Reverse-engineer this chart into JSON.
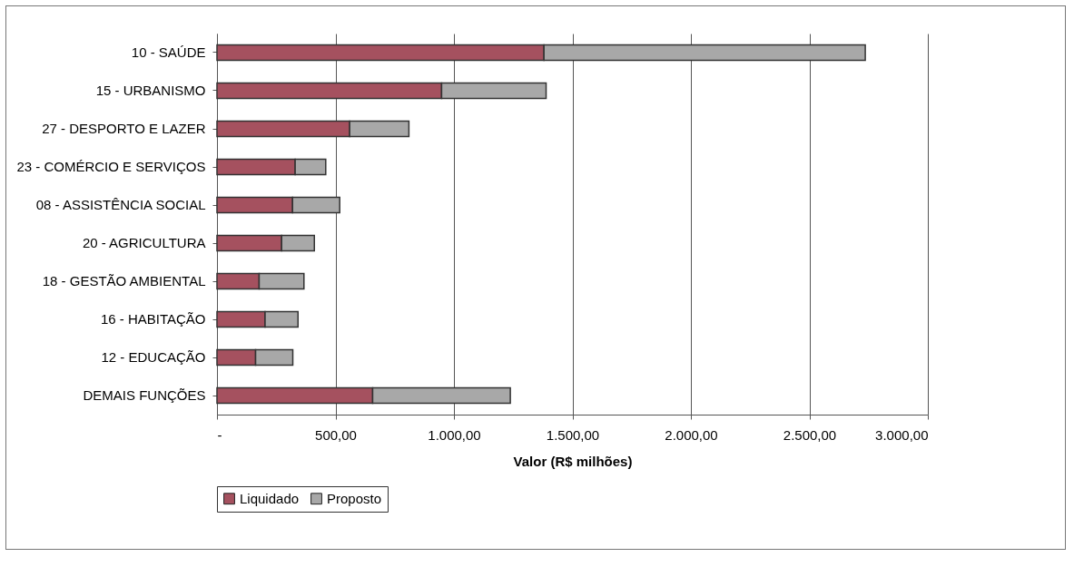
{
  "chart_data": {
    "type": "bar",
    "orientation": "horizontal",
    "stacked": true,
    "categories": [
      "10 - SAÚDE",
      "15 - URBANISMO",
      "27 - DESPORTO E LAZER",
      "23 - COMÉRCIO E SERVIÇOS",
      "08 - ASSISTÊNCIA SOCIAL",
      "20 - AGRICULTURA",
      "18 - GESTÃO AMBIENTAL",
      "16 - HABITAÇÃO",
      "12 - EDUCAÇÃO",
      "DEMAIS FUNÇÕES"
    ],
    "series": [
      {
        "name": "Liquidado",
        "color": "#a5515f",
        "values": [
          1380,
          948,
          560,
          330,
          319,
          273,
          178,
          203,
          163,
          657
        ]
      },
      {
        "name": "Proposto",
        "color": "#a8a8a8",
        "values": [
          1356,
          441,
          250,
          129,
          199,
          138,
          189,
          139,
          157,
          581
        ]
      }
    ],
    "xlabel": "Valor (R$ milhões)",
    "xlim": [
      0,
      3000
    ],
    "xticks": [
      {
        "value": 0,
        "label": "-"
      },
      {
        "value": 500,
        "label": "500,00"
      },
      {
        "value": 1000,
        "label": "1.000,00"
      },
      {
        "value": 1500,
        "label": "1.500,00"
      },
      {
        "value": 2000,
        "label": "2.000,00"
      },
      {
        "value": 2500,
        "label": "2.500,00"
      },
      {
        "value": 3000,
        "label": "3.000,00"
      }
    ],
    "grid": "x",
    "legend": "bottom"
  }
}
